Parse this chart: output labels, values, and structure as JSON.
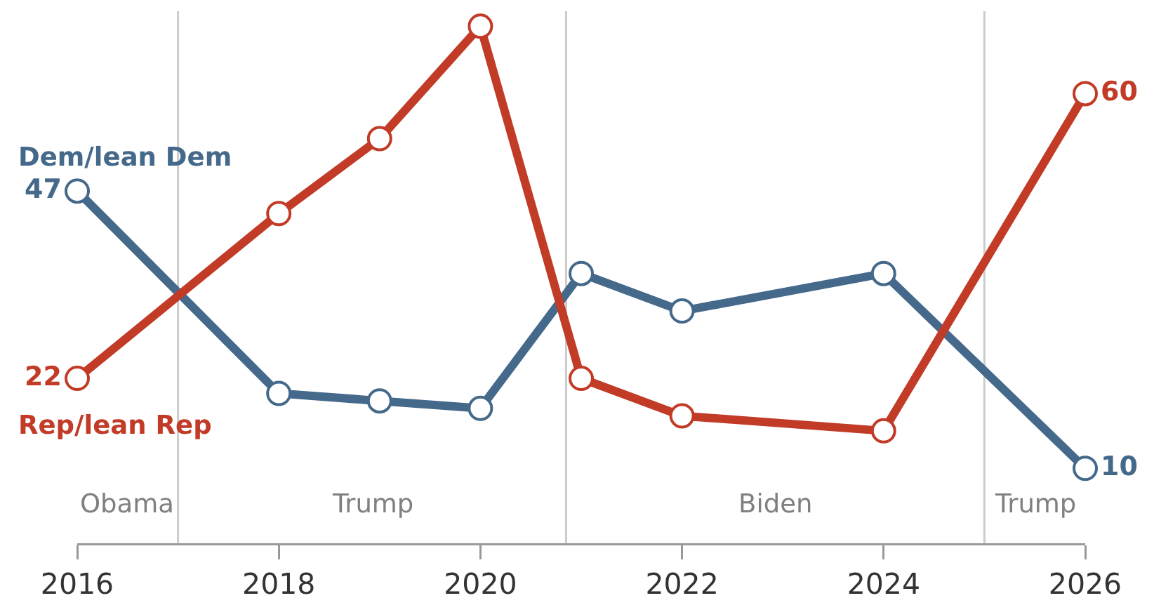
{
  "chart_data": {
    "type": "line",
    "x": [
      2016,
      2018,
      2019,
      2020,
      2021,
      2022,
      2024,
      2026
    ],
    "series": [
      {
        "name": "Dem/lean Dem",
        "color": "#45698a",
        "values": [
          47,
          20,
          19,
          18,
          36,
          31,
          36,
          10
        ],
        "value_labels": [
          "47",
          null,
          null,
          null,
          null,
          null,
          null,
          "10"
        ]
      },
      {
        "name": "Rep/lean Rep",
        "color": "#c23b27",
        "values": [
          22,
          44,
          54,
          69,
          22,
          17,
          15,
          60
        ],
        "value_labels": [
          "22",
          null,
          null,
          null,
          null,
          null,
          null,
          "60"
        ]
      }
    ],
    "xlim": [
      2016,
      2026
    ],
    "xticks": [
      2016,
      2018,
      2020,
      2022,
      2024,
      2026
    ],
    "ylim": [
      0,
      71
    ],
    "tick_labels": "x",
    "marker": "circle",
    "line_style": "solid",
    "ref_lines": [
      {
        "axis": "x",
        "value": 2017,
        "color": "#cccccc"
      },
      {
        "axis": "x",
        "value": 2020.85,
        "color": "#cccccc"
      },
      {
        "axis": "x",
        "value": 2025,
        "color": "#cccccc"
      }
    ],
    "annotations": [
      "Obama",
      "Trump",
      "Biden",
      "Trump"
    ]
  }
}
